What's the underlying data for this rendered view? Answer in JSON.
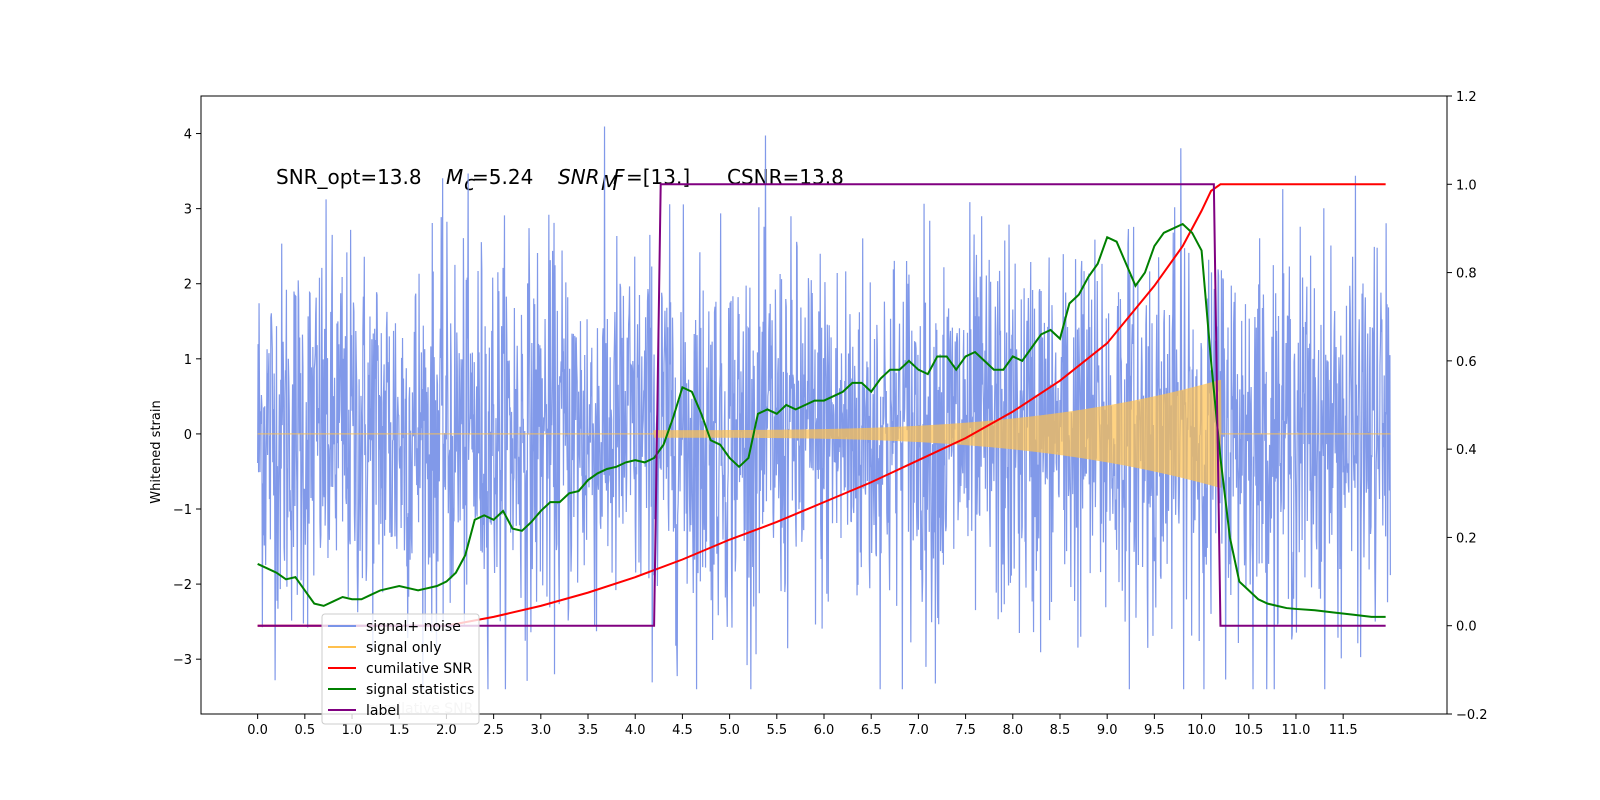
{
  "chart_data": {
    "type": "line",
    "title": {
      "snr_opt": "SNR_opt=13.8",
      "mc_symbol": "M",
      "mc_sub": "c",
      "mc_value": "=5.24",
      "snrmf_symbol": "SNR",
      "snrmf_sub": "M",
      "snrmf_F": "F",
      "snrmf_value": "=[13.]",
      "csnr": "CSNR=13.8"
    },
    "ylabel_left": "Whitened strain",
    "xlabel": "",
    "ylabel_right": "",
    "xlim": [
      -0.6,
      12.6
    ],
    "ylim_left": [
      -3.73,
      4.5
    ],
    "ylim_right": [
      -0.2,
      1.2
    ],
    "x_ticks": [
      "0.0",
      "0.5",
      "1.0",
      "1.5",
      "2.0",
      "2.5",
      "3.0",
      "3.5",
      "4.0",
      "4.5",
      "5.0",
      "5.5",
      "6.0",
      "6.5",
      "7.0",
      "7.5",
      "8.0",
      "8.5",
      "9.0",
      "9.5",
      "10.0",
      "10.5",
      "11.0",
      "11.5"
    ],
    "y_ticks_left": [
      "-3",
      "-2",
      "-1",
      "0",
      "1",
      "2",
      "3",
      "4"
    ],
    "y_ticks_right": [
      "-0.2",
      "0.0",
      "0.2",
      "0.4",
      "0.6",
      "0.8",
      "1.0",
      "1.2"
    ],
    "legend": {
      "position": "lower left",
      "entries": [
        {
          "label": "signal+ noise",
          "color": "#7a94e8"
        },
        {
          "label": "signal only",
          "color": "#ffc04d"
        },
        {
          "label": "cumilative SNR",
          "color": "#ff0000"
        },
        {
          "label": "signal statistics",
          "color": "#008000"
        },
        {
          "label": "label",
          "color": "#800080"
        }
      ],
      "ghost_text": "cumilative SNR"
    },
    "series": [
      {
        "name": "signal+ noise",
        "axis": "left",
        "color": "#7a94e8",
        "description": "whitened strain noise, amplitude envelope approx ±2.5 with spikes to 4.1 and -3.35",
        "noise_envelope": 1.25,
        "x_range": [
          0.0,
          12.0
        ]
      },
      {
        "name": "signal only",
        "axis": "left",
        "color": "#ffc04d",
        "description": "chirp waveform from x=4.2 to x=10.2, amplitude growing from 0.05 to 0.7",
        "start": 4.2,
        "end": 10.2,
        "amp_start": 0.05,
        "amp_end": 0.72
      },
      {
        "name": "cumilative SNR",
        "axis": "right",
        "color": "#ff0000",
        "x": [
          0.0,
          2.0,
          2.5,
          3.0,
          3.5,
          4.0,
          4.5,
          5.0,
          5.5,
          6.0,
          6.5,
          7.0,
          7.5,
          8.0,
          8.5,
          9.0,
          9.5,
          9.8,
          10.0,
          10.1,
          10.2,
          11.95
        ],
        "y": [
          0.0,
          0.0,
          0.02,
          0.045,
          0.075,
          0.11,
          0.15,
          0.195,
          0.235,
          0.28,
          0.325,
          0.375,
          0.425,
          0.485,
          0.555,
          0.64,
          0.77,
          0.86,
          0.94,
          0.985,
          1.0,
          1.0
        ]
      },
      {
        "name": "signal statistics",
        "axis": "right",
        "color": "#008000",
        "x": [
          0.0,
          0.1,
          0.2,
          0.3,
          0.4,
          0.5,
          0.6,
          0.7,
          0.8,
          0.9,
          1.0,
          1.1,
          1.2,
          1.3,
          1.4,
          1.5,
          1.6,
          1.7,
          1.8,
          1.9,
          2.0,
          2.1,
          2.2,
          2.3,
          2.4,
          2.5,
          2.6,
          2.7,
          2.8,
          2.9,
          3.0,
          3.1,
          3.2,
          3.3,
          3.4,
          3.5,
          3.6,
          3.7,
          3.8,
          3.9,
          4.0,
          4.1,
          4.2,
          4.3,
          4.4,
          4.5,
          4.6,
          4.7,
          4.8,
          4.9,
          5.0,
          5.1,
          5.2,
          5.3,
          5.4,
          5.5,
          5.6,
          5.7,
          5.8,
          5.9,
          6.0,
          6.1,
          6.2,
          6.3,
          6.4,
          6.5,
          6.6,
          6.7,
          6.8,
          6.9,
          7.0,
          7.1,
          7.2,
          7.3,
          7.4,
          7.5,
          7.6,
          7.7,
          7.8,
          7.9,
          8.0,
          8.1,
          8.2,
          8.3,
          8.4,
          8.5,
          8.6,
          8.7,
          8.8,
          8.9,
          9.0,
          9.1,
          9.2,
          9.3,
          9.4,
          9.5,
          9.6,
          9.7,
          9.8,
          9.9,
          10.0,
          10.1,
          10.2,
          10.3,
          10.4,
          10.5,
          10.6,
          10.7,
          10.8,
          10.9,
          11.0,
          11.2,
          11.4,
          11.6,
          11.8,
          11.95
        ],
        "y": [
          0.14,
          0.13,
          0.12,
          0.105,
          0.11,
          0.08,
          0.05,
          0.045,
          0.055,
          0.065,
          0.06,
          0.06,
          0.07,
          0.08,
          0.085,
          0.09,
          0.085,
          0.08,
          0.085,
          0.09,
          0.1,
          0.12,
          0.16,
          0.24,
          0.25,
          0.24,
          0.26,
          0.22,
          0.215,
          0.235,
          0.26,
          0.28,
          0.28,
          0.3,
          0.305,
          0.33,
          0.345,
          0.355,
          0.36,
          0.37,
          0.375,
          0.37,
          0.38,
          0.41,
          0.47,
          0.54,
          0.53,
          0.48,
          0.42,
          0.41,
          0.38,
          0.36,
          0.38,
          0.48,
          0.49,
          0.48,
          0.5,
          0.49,
          0.5,
          0.51,
          0.51,
          0.52,
          0.53,
          0.55,
          0.55,
          0.53,
          0.56,
          0.58,
          0.58,
          0.6,
          0.58,
          0.57,
          0.61,
          0.61,
          0.58,
          0.61,
          0.62,
          0.6,
          0.58,
          0.58,
          0.61,
          0.6,
          0.63,
          0.66,
          0.67,
          0.65,
          0.73,
          0.75,
          0.79,
          0.82,
          0.88,
          0.87,
          0.82,
          0.77,
          0.8,
          0.86,
          0.89,
          0.9,
          0.91,
          0.89,
          0.85,
          0.6,
          0.38,
          0.2,
          0.1,
          0.08,
          0.06,
          0.05,
          0.045,
          0.04,
          0.038,
          0.035,
          0.03,
          0.025,
          0.02,
          0.02
        ]
      },
      {
        "name": "label",
        "axis": "right",
        "color": "#800080",
        "x": [
          0.0,
          4.2,
          4.27,
          10.13,
          10.2,
          11.95
        ],
        "y": [
          0.0,
          0.0,
          1.0,
          1.0,
          0.0,
          0.0
        ]
      }
    ],
    "grid": false
  }
}
